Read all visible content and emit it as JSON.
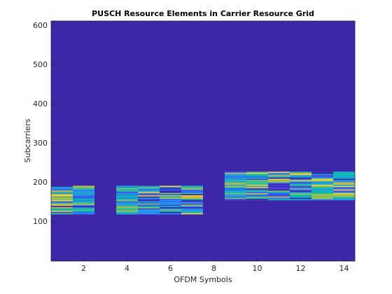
{
  "chart_data": {
    "type": "resource-grid",
    "title": "PUSCH Resource Elements in Carrier Resource Grid",
    "x_label": "OFDM Symbols",
    "y_label": "Subcarriers",
    "x": [
      1,
      2,
      3,
      4,
      5,
      6,
      7,
      8,
      9,
      10,
      11,
      12,
      13,
      14
    ],
    "start": [
      120,
      120,
      null,
      120,
      120,
      120,
      120,
      null,
      156,
      156,
      156,
      156,
      156,
      156
    ],
    "end": [
      192,
      192,
      null,
      192,
      192,
      192,
      192,
      null,
      228,
      228,
      228,
      228,
      228,
      228
    ],
    "color": "#3e26a8",
    "xlim": [
      0.5,
      14.5
    ],
    "xticks": [
      2,
      4,
      6,
      8,
      10,
      12,
      14
    ],
    "ylim": [
      0.5,
      612.5
    ],
    "yticks": [
      100,
      200,
      300,
      400,
      500,
      600
    ]
  }
}
